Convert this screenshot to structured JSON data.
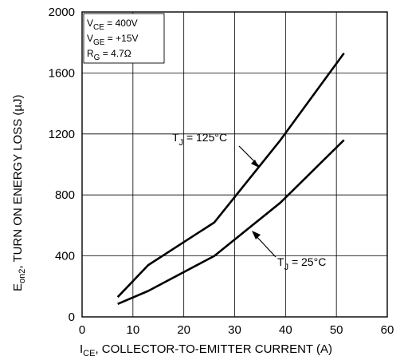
{
  "chart_data": {
    "type": "line",
    "xlabel": "I_CE, COLLECTOR-TO-EMITTER CURRENT (A)",
    "ylabel": "E_on2, TURN ON ENERGY LOSS (µJ)",
    "xlim": [
      0,
      60
    ],
    "ylim": [
      0,
      2000
    ],
    "x_ticks": [
      0,
      10,
      20,
      30,
      40,
      50,
      60
    ],
    "y_ticks": [
      0,
      400,
      800,
      1200,
      1600,
      2000
    ],
    "grid": true,
    "series": [
      {
        "name": "T_J = 125°C",
        "x": [
          7,
          13,
          26,
          39,
          51.5
        ],
        "y": [
          130,
          340,
          620,
          1160,
          1730
        ]
      },
      {
        "name": "T_J = 25°C",
        "x": [
          7,
          13,
          26,
          39,
          51.5
        ],
        "y": [
          85,
          170,
          400,
          750,
          1160
        ]
      }
    ],
    "conditions": [
      "V_CE = 400V",
      "V_GE = +15V",
      "R_G = 4.7Ω"
    ]
  },
  "text": {
    "xlabel_main": "I",
    "xlabel_sub": "CE",
    "xlabel_rest": ", COLLECTOR-TO-EMITTER CURRENT (A)",
    "ylabel_main": "E",
    "ylabel_sub": "on2",
    "ylabel_rest": ", TURN ON ENERGY LOSS (µJ)",
    "tj125_main": "T",
    "tj125_sub": "J",
    "tj125_rest": " = 125°C",
    "tj25_main": "T",
    "tj25_sub": "J",
    "tj25_rest": " = 25°C",
    "vce_main": "V",
    "vce_sub": "CE",
    "vce_rest": " = 400V",
    "vge_main": "V",
    "vge_sub": "GE",
    "vge_rest": " = +15V",
    "rg_main": "R",
    "rg_sub": "G",
    "rg_rest": " = 4.7Ω"
  }
}
